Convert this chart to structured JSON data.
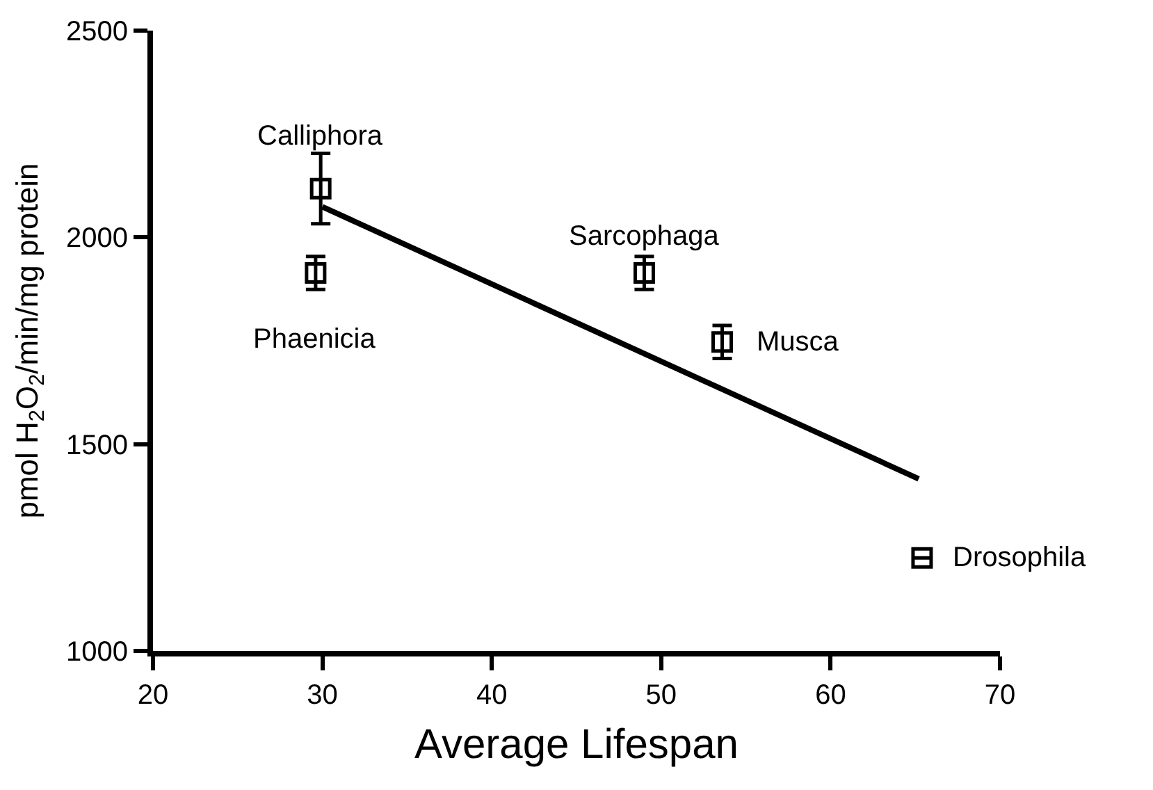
{
  "chart_data": {
    "type": "scatter",
    "xlabel": "Average Lifespan",
    "ylabel": "pmol H$_{2}$O$_{2}$/min/mg protein",
    "series": [
      {
        "color": "#000000",
        "marker": "square",
        "x": [
          29.9,
          29.6,
          49.0,
          53.6,
          65.4
        ],
        "values": [
          2118,
          1914,
          1914,
          1747,
          1225
        ],
        "errors": [
          85,
          40,
          40,
          40,
          null
        ]
      },
      {
        "type": "line",
        "color": "#000000",
        "marker": "none",
        "x": [
          30.0,
          65.2
        ],
        "values": [
          2074,
          1416
        ]
      }
    ],
    "annotations": [
      {
        "text": "Calliphora",
        "x": 29.9,
        "y": 2118
      },
      {
        "text": "Phaenicia",
        "x": 29.6,
        "y": 1914
      },
      {
        "text": "Sarcophaga",
        "x": 49.0,
        "y": 1914
      },
      {
        "text": "Musca",
        "x": 53.6,
        "y": 1747
      },
      {
        "text": "Drosophila",
        "x": 65.4,
        "y": 1225
      }
    ],
    "xlim": [
      20,
      70
    ],
    "xticks": [
      20,
      30,
      40,
      50,
      60,
      70
    ],
    "ylim": [
      1000,
      2500
    ],
    "yticks": [
      1000,
      1500,
      2000,
      2500
    ]
  }
}
